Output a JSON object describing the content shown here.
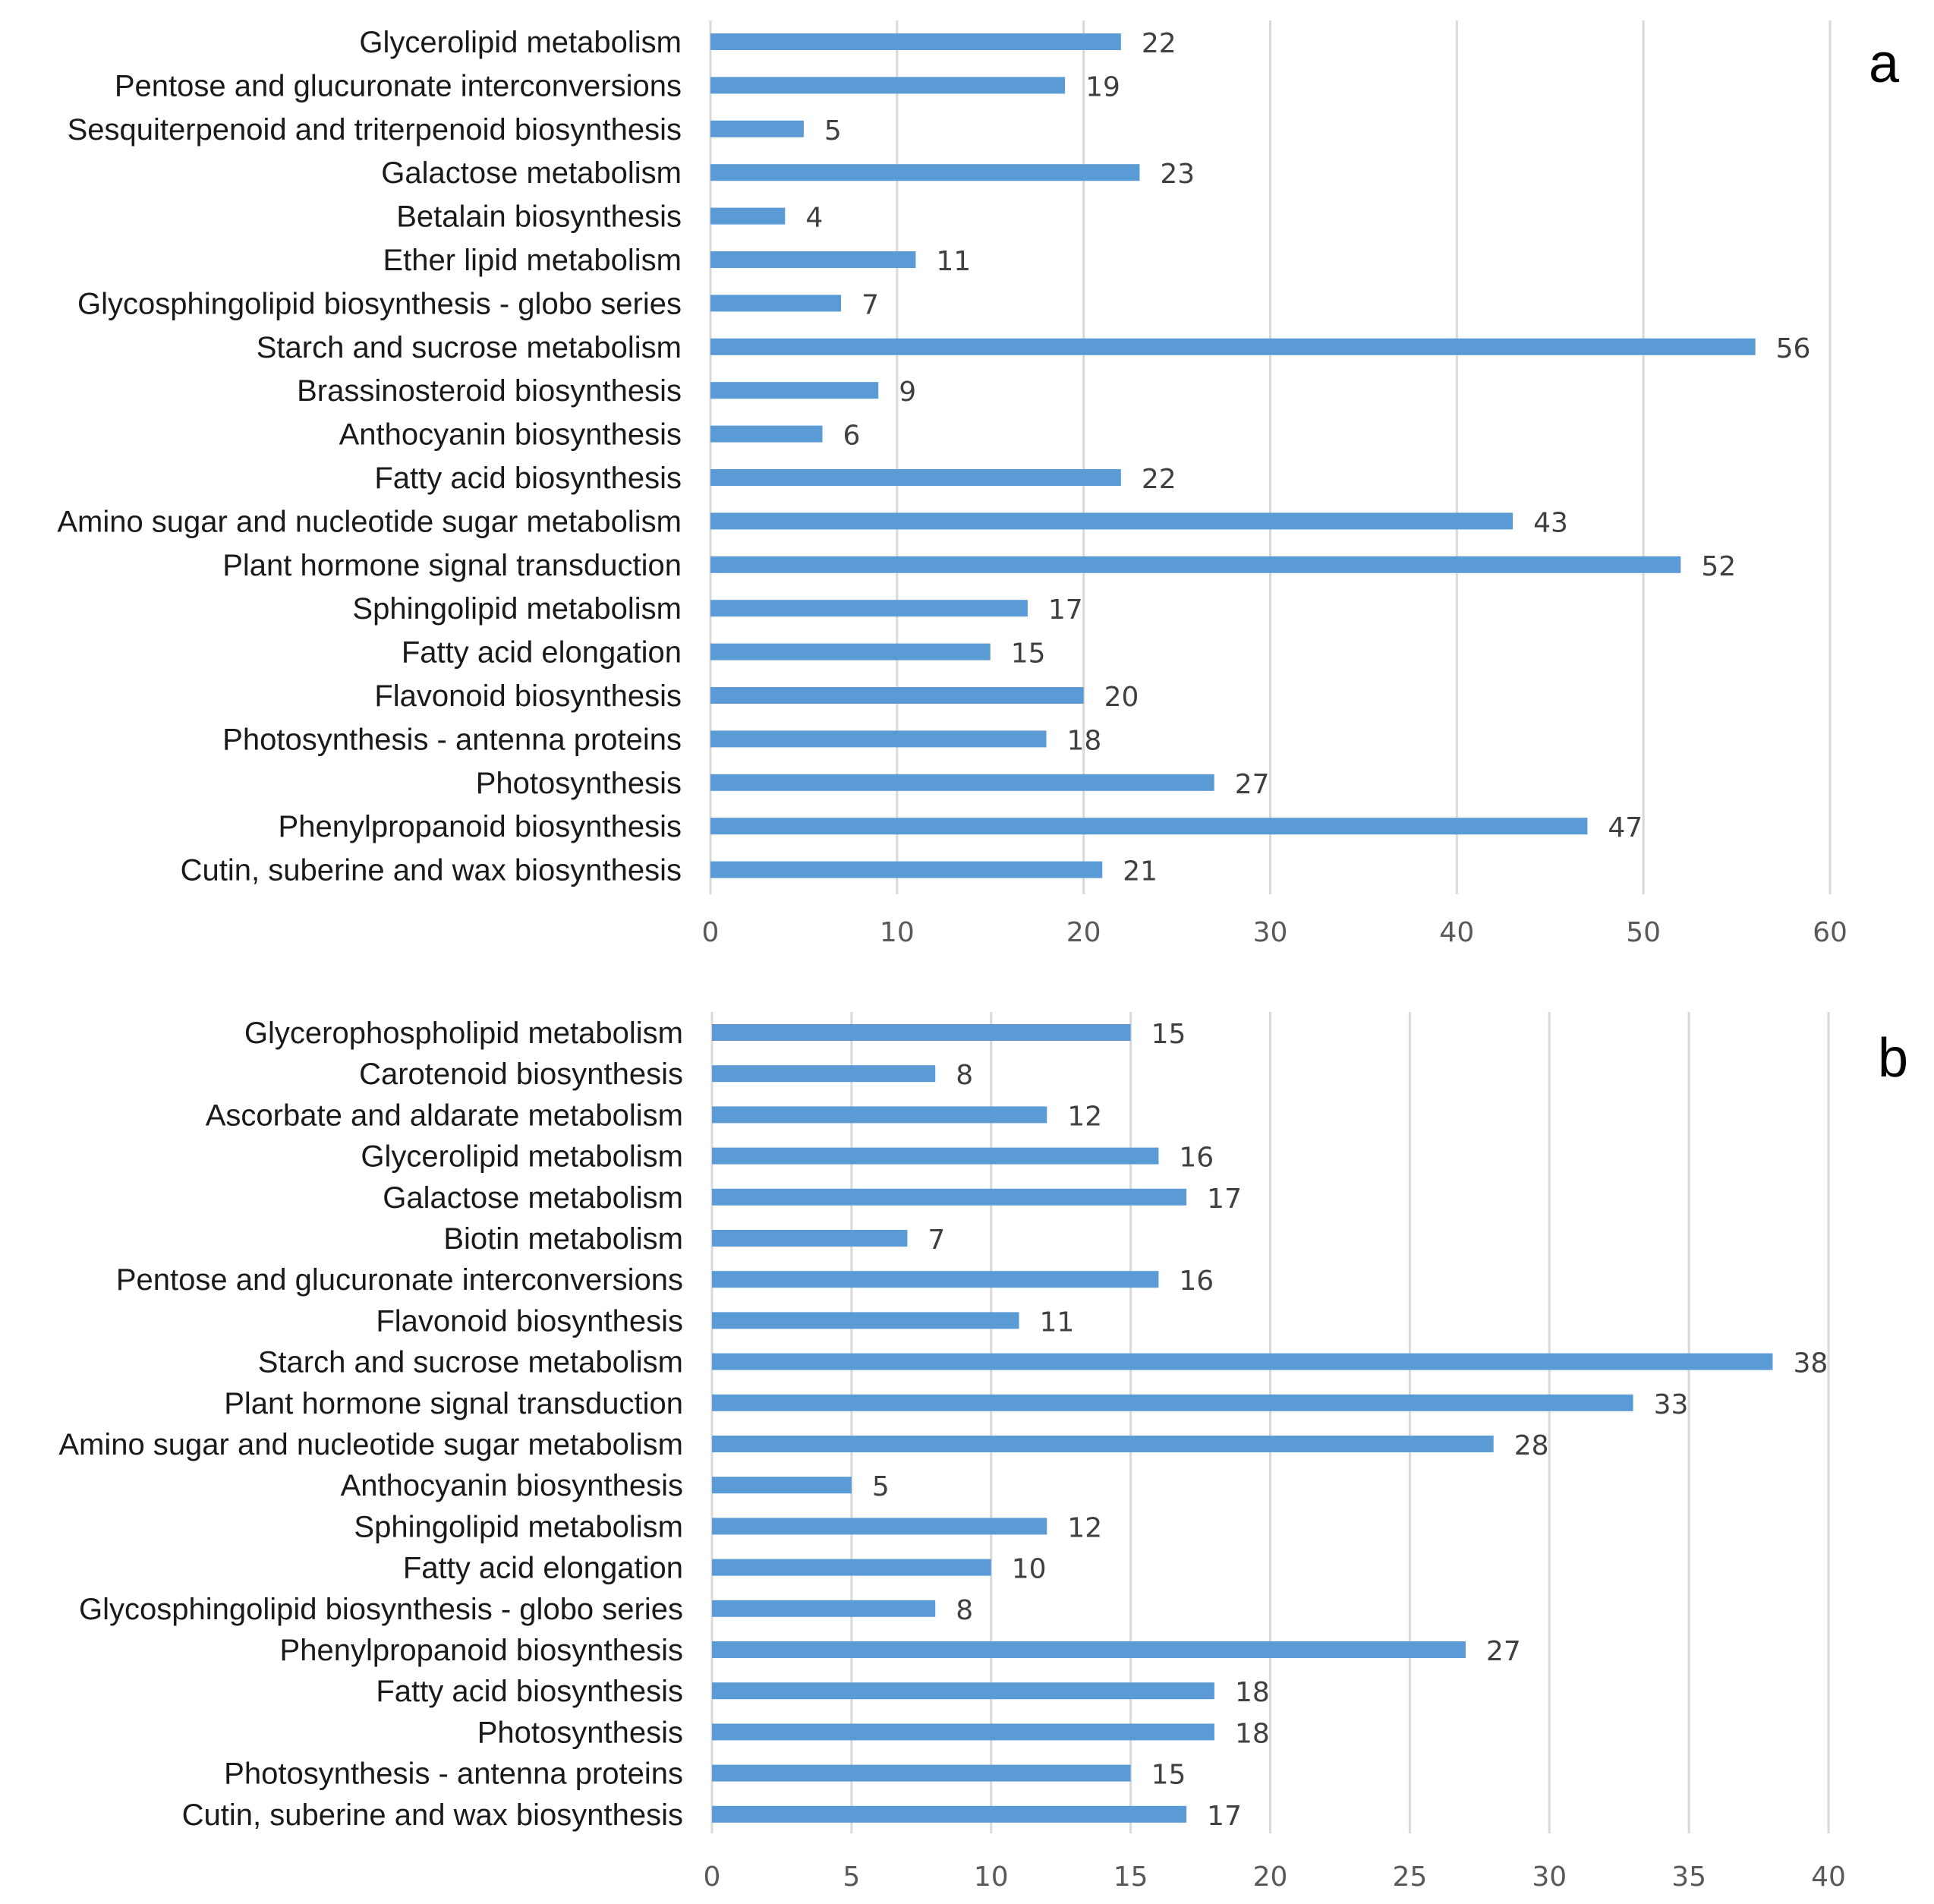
{
  "colors": {
    "bar": "#5b9bd5",
    "grid": "#d9d9d9"
  },
  "chart_data": [
    {
      "type": "bar",
      "orientation": "horizontal",
      "panel_label": "a",
      "xlim": [
        0,
        60
      ],
      "ticks": [
        0,
        10,
        20,
        30,
        40,
        50,
        60
      ],
      "grid": true,
      "categories": [
        "Glycerolipid metabolism",
        "Pentose and glucuronate interconversions",
        "Sesquiterpenoid and triterpenoid biosynthesis",
        "Galactose metabolism",
        "Betalain biosynthesis",
        "Ether lipid metabolism",
        "Glycosphingolipid biosynthesis - globo series",
        "Starch and sucrose metabolism",
        "Brassinosteroid biosynthesis",
        "Anthocyanin biosynthesis",
        "Fatty acid biosynthesis",
        "Amino sugar and nucleotide sugar metabolism",
        "Plant hormone signal transduction",
        "Sphingolipid metabolism",
        "Fatty acid elongation",
        "Flavonoid biosynthesis",
        "Photosynthesis - antenna proteins",
        "Photosynthesis",
        "Phenylpropanoid biosynthesis",
        "Cutin, suberine and wax biosynthesis"
      ],
      "values": [
        22,
        19,
        5,
        23,
        4,
        11,
        7,
        56,
        9,
        6,
        22,
        43,
        52,
        17,
        15,
        20,
        18,
        27,
        47,
        21
      ]
    },
    {
      "type": "bar",
      "orientation": "horizontal",
      "panel_label": "b",
      "xlim": [
        0,
        40
      ],
      "ticks": [
        0,
        5,
        10,
        15,
        20,
        25,
        30,
        35,
        40
      ],
      "grid": true,
      "categories": [
        "Glycerophospholipid metabolism",
        "Carotenoid biosynthesis",
        "Ascorbate and aldarate metabolism",
        "Glycerolipid metabolism",
        "Galactose metabolism",
        "Biotin metabolism",
        "Pentose and glucuronate interconversions",
        "Flavonoid biosynthesis",
        "Starch and sucrose metabolism",
        "Plant hormone signal transduction",
        "Amino sugar and nucleotide sugar metabolism",
        "Anthocyanin biosynthesis",
        "Sphingolipid metabolism",
        "Fatty acid elongation",
        "Glycosphingolipid biosynthesis - globo series",
        "Phenylpropanoid biosynthesis",
        "Fatty acid biosynthesis",
        "Photosynthesis",
        "Photosynthesis - antenna proteins",
        "Cutin, suberine and wax biosynthesis"
      ],
      "values": [
        15,
        8,
        12,
        16,
        17,
        7,
        16,
        11,
        38,
        33,
        28,
        5,
        12,
        10,
        8,
        27,
        18,
        18,
        15,
        17
      ]
    }
  ]
}
